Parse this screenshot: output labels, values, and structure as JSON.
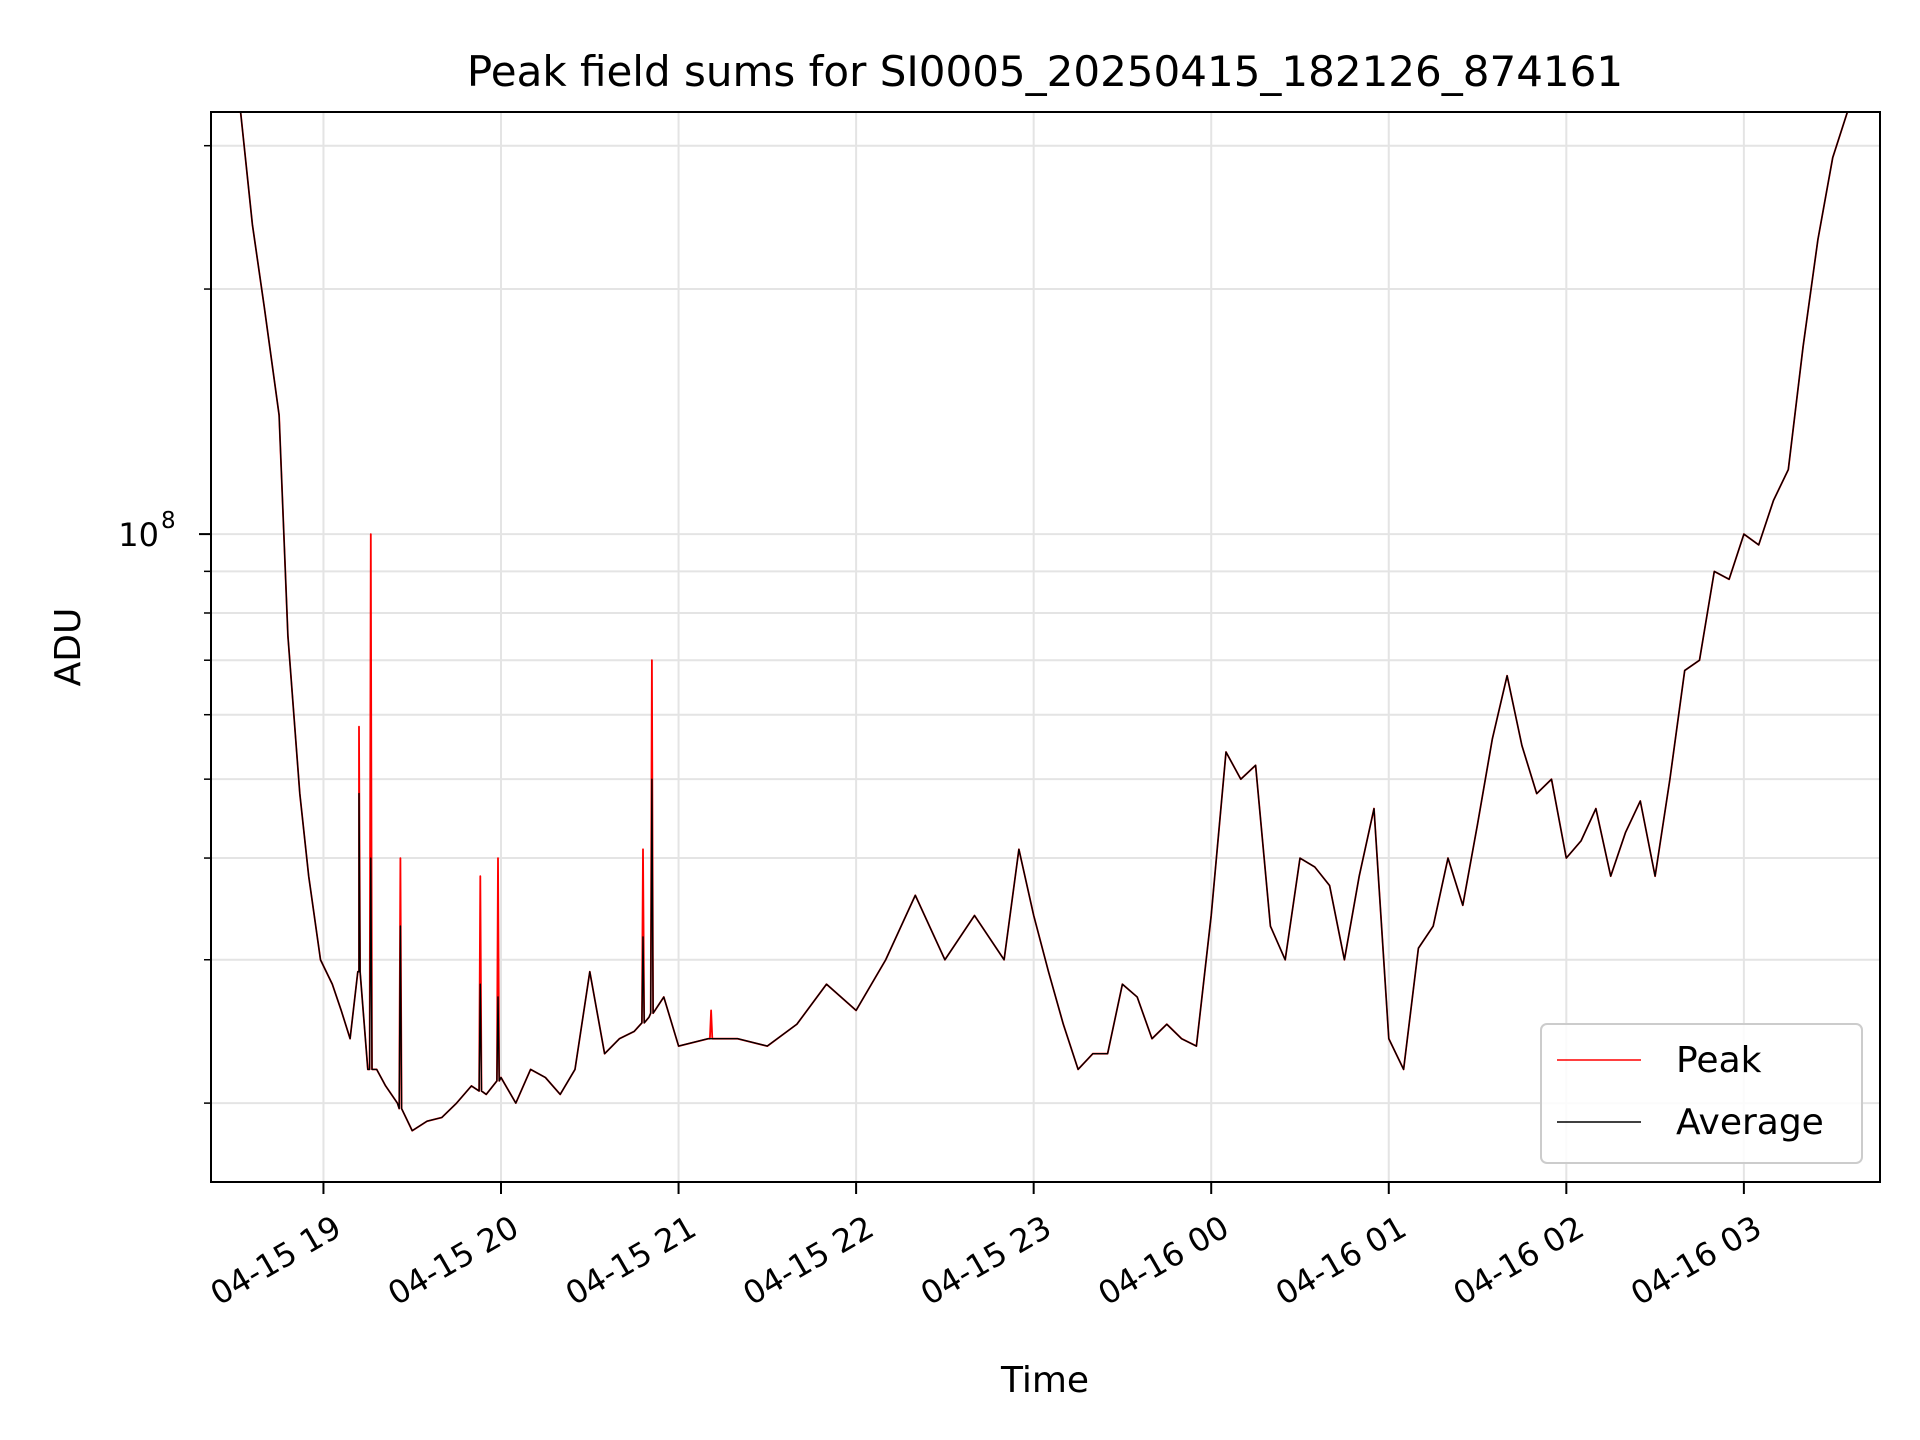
{
  "chart_data": {
    "type": "line",
    "title": "Peak field sums for SI0005_20250415_182126_874161",
    "xlabel": "Time",
    "ylabel": "ADU",
    "yscale": "log",
    "ylim": [
      16000000,
      330000000
    ],
    "xlim": [
      "04-15 18:22",
      "04-16 03:46"
    ],
    "grid": true,
    "legend_position": "lower-right",
    "x_tick_labels": [
      "04-15 19",
      "04-15 20",
      "04-15 21",
      "04-15 22",
      "04-15 23",
      "04-16 00",
      "04-16 01",
      "04-16 02",
      "04-16 03"
    ],
    "y_tick_labels": [
      {
        "base": "10",
        "exponent": "8"
      }
    ],
    "colors": {
      "peak": "#ff0000",
      "average": "#000000"
    },
    "x": [
      "04-15 18:22",
      "04-15 18:28",
      "04-15 18:32",
      "04-15 18:36",
      "04-15 18:40",
      "04-15 18:45",
      "04-15 18:48",
      "04-15 18:52",
      "04-15 18:55",
      "04-15 18:59",
      "04-15 19:03",
      "04-15 19:06",
      "04-15 19:09",
      "04-15 19:12",
      "04-15 19:15",
      "04-15 19:18",
      "04-15 19:21",
      "04-15 19:25",
      "04-15 19:30",
      "04-15 19:35",
      "04-15 19:40",
      "04-15 19:45",
      "04-15 19:50",
      "04-15 19:55",
      "04-15 20:00",
      "04-15 20:05",
      "04-15 20:10",
      "04-15 20:15",
      "04-15 20:20",
      "04-15 20:25",
      "04-15 20:30",
      "04-15 20:35",
      "04-15 20:40",
      "04-15 20:45",
      "04-15 20:50",
      "04-15 20:55",
      "04-15 21:00",
      "04-15 21:10",
      "04-15 21:20",
      "04-15 21:30",
      "04-15 21:40",
      "04-15 21:50",
      "04-15 22:00",
      "04-15 22:10",
      "04-15 22:20",
      "04-15 22:30",
      "04-15 22:40",
      "04-15 22:50",
      "04-15 22:55",
      "04-15 23:00",
      "04-15 23:05",
      "04-15 23:10",
      "04-15 23:15",
      "04-15 23:20",
      "04-15 23:25",
      "04-15 23:30",
      "04-15 23:35",
      "04-15 23:40",
      "04-15 23:45",
      "04-15 23:50",
      "04-15 23:55",
      "04-16 00:00",
      "04-16 00:05",
      "04-16 00:10",
      "04-16 00:15",
      "04-16 00:20",
      "04-16 00:25",
      "04-16 00:30",
      "04-16 00:35",
      "04-16 00:40",
      "04-16 00:45",
      "04-16 00:50",
      "04-16 00:55",
      "04-16 01:00",
      "04-16 01:05",
      "04-16 01:10",
      "04-16 01:15",
      "04-16 01:20",
      "04-16 01:25",
      "04-16 01:30",
      "04-16 01:35",
      "04-16 01:40",
      "04-16 01:45",
      "04-16 01:50",
      "04-16 01:55",
      "04-16 02:00",
      "04-16 02:05",
      "04-16 02:10",
      "04-16 02:15",
      "04-16 02:20",
      "04-16 02:25",
      "04-16 02:30",
      "04-16 02:35",
      "04-16 02:40",
      "04-16 02:45",
      "04-16 02:50",
      "04-16 02:55",
      "04-16 03:00",
      "04-16 03:05",
      "04-16 03:10",
      "04-16 03:15",
      "04-16 03:20",
      "04-16 03:25",
      "04-16 03:30",
      "04-16 03:35",
      "04-16 03:40",
      "04-16 03:46"
    ],
    "series": [
      {
        "name": "Peak",
        "values": [
          330000000,
          330000000,
          330000000,
          240000000,
          190000000,
          140000000,
          75000000,
          48000000,
          38000000,
          30000000,
          28000000,
          26000000,
          24000000,
          29000000,
          22000000,
          22000000,
          21000000,
          20000000,
          18500000,
          19000000,
          19200000,
          20000000,
          21000000,
          20500000,
          21500000,
          20000000,
          22000000,
          21500000,
          20500000,
          22000000,
          29000000,
          23000000,
          24000000,
          24500000,
          25500000,
          27000000,
          23500000,
          24000000,
          24000000,
          23500000,
          25000000,
          28000000,
          26000000,
          30000000,
          36000000,
          30000000,
          34000000,
          30000000,
          41000000,
          34000000,
          29000000,
          25000000,
          22000000,
          23000000,
          23000000,
          28000000,
          27000000,
          24000000,
          25000000,
          24000000,
          23500000,
          34000000,
          54000000,
          50000000,
          52000000,
          33000000,
          30000000,
          40000000,
          39000000,
          37000000,
          30000000,
          38000000,
          46000000,
          24000000,
          22000000,
          31000000,
          33000000,
          40000000,
          35000000,
          44000000,
          56000000,
          67000000,
          55000000,
          48000000,
          50000000,
          40000000,
          42000000,
          46000000,
          38000000,
          43000000,
          47000000,
          38000000,
          50000000,
          68000000,
          70000000,
          90000000,
          88000000,
          100000000,
          97000000,
          110000000,
          120000000,
          170000000,
          230000000,
          290000000,
          330000000,
          330000000,
          330000000
        ],
        "spikes": [
          {
            "x": "04-15 19:12",
            "value": 58000000
          },
          {
            "x": "04-15 19:16",
            "value": 100000000
          },
          {
            "x": "04-15 19:26",
            "value": 40000000
          },
          {
            "x": "04-15 19:53",
            "value": 38000000
          },
          {
            "x": "04-15 19:59",
            "value": 40000000
          },
          {
            "x": "04-15 20:48",
            "value": 41000000
          },
          {
            "x": "04-15 20:51",
            "value": 70000000
          },
          {
            "x": "04-15 21:11",
            "value": 26000000
          }
        ]
      },
      {
        "name": "Average",
        "values": [
          330000000,
          330000000,
          330000000,
          240000000,
          190000000,
          140000000,
          75000000,
          48000000,
          38000000,
          30000000,
          28000000,
          26000000,
          24000000,
          29000000,
          22000000,
          22000000,
          21000000,
          20000000,
          18500000,
          19000000,
          19200000,
          20000000,
          21000000,
          20500000,
          21500000,
          20000000,
          22000000,
          21500000,
          20500000,
          22000000,
          29000000,
          23000000,
          24000000,
          24500000,
          25500000,
          27000000,
          23500000,
          24000000,
          24000000,
          23500000,
          25000000,
          28000000,
          26000000,
          30000000,
          36000000,
          30000000,
          34000000,
          30000000,
          41000000,
          34000000,
          29000000,
          25000000,
          22000000,
          23000000,
          23000000,
          28000000,
          27000000,
          24000000,
          25000000,
          24000000,
          23500000,
          34000000,
          54000000,
          50000000,
          52000000,
          33000000,
          30000000,
          40000000,
          39000000,
          37000000,
          30000000,
          38000000,
          46000000,
          24000000,
          22000000,
          31000000,
          33000000,
          40000000,
          35000000,
          44000000,
          56000000,
          67000000,
          55000000,
          48000000,
          50000000,
          40000000,
          42000000,
          46000000,
          38000000,
          43000000,
          47000000,
          38000000,
          50000000,
          68000000,
          70000000,
          90000000,
          88000000,
          100000000,
          97000000,
          110000000,
          120000000,
          170000000,
          230000000,
          290000000,
          330000000,
          330000000,
          330000000
        ],
        "spikes": [
          {
            "x": "04-15 19:12",
            "value": 48000000
          },
          {
            "x": "04-15 19:16",
            "value": 40000000
          },
          {
            "x": "04-15 19:26",
            "value": 33000000
          },
          {
            "x": "04-15 19:53",
            "value": 28000000
          },
          {
            "x": "04-15 19:59",
            "value": 27000000
          },
          {
            "x": "04-15 20:48",
            "value": 32000000
          },
          {
            "x": "04-15 20:51",
            "value": 50000000
          }
        ]
      }
    ]
  }
}
